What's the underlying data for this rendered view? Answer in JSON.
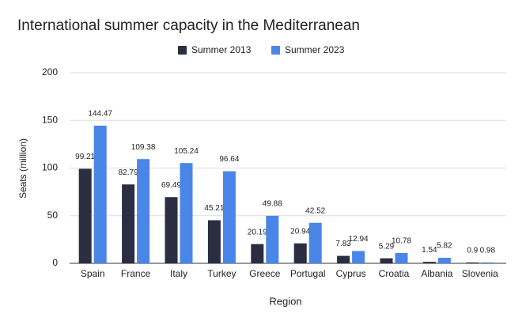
{
  "chart_data": {
    "type": "bar",
    "title": "International summer capacity in the Mediterranean",
    "x_label": "Region",
    "y_label": "Seats (million)",
    "categories": [
      "Spain",
      "France",
      "Italy",
      "Turkey",
      "Greece",
      "Portugal",
      "Cyprus",
      "Croatia",
      "Albania",
      "Slovenia"
    ],
    "series": [
      {
        "name": "Summer 2013",
        "color": "#2b2d42",
        "values": [
          99.21,
          82.79,
          69.49,
          45.21,
          20.19,
          20.94,
          7.83,
          5.29,
          1.54,
          0.9
        ]
      },
      {
        "name": "Summer 2023",
        "color": "#4a86e8",
        "values": [
          144.47,
          109.38,
          105.24,
          96.64,
          49.88,
          42.52,
          12.94,
          10.78,
          5.82,
          0.98
        ]
      }
    ],
    "ylim": [
      0,
      200
    ],
    "yticks": [
      0,
      50,
      100,
      150,
      200
    ],
    "grid": true,
    "legend": "top"
  }
}
